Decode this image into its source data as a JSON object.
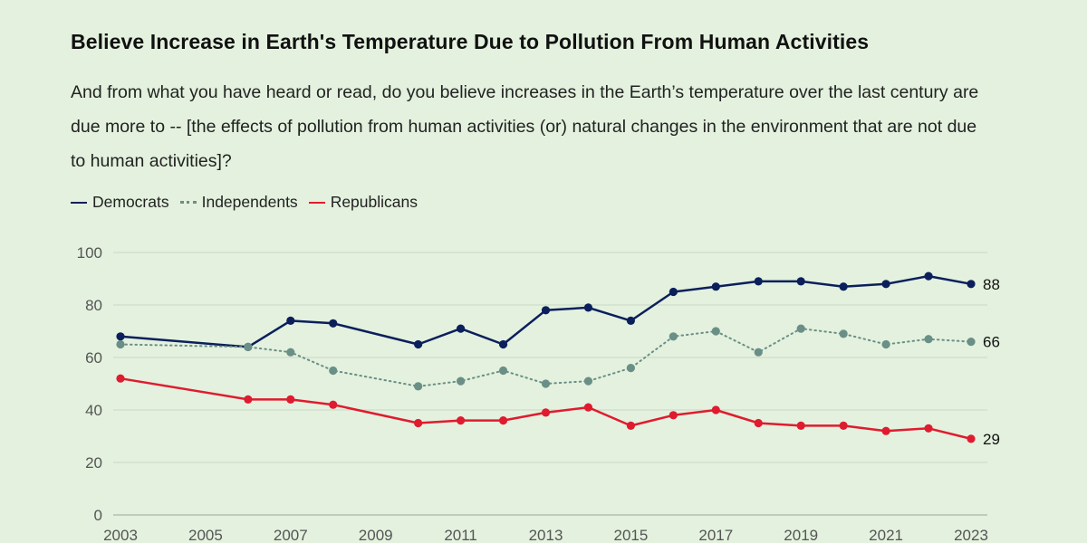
{
  "chart_data": {
    "type": "line",
    "title": "Believe Increase in Earth's Temperature Due to Pollution From Human Activities",
    "subtitle": "And from what you have heard or read, do you believe increases in the Earth’s temperature over the last century are due more to -- [the effects of pollution from human activities (or) natural changes in the environment that are not due to human activities]?",
    "xlabel": "",
    "ylabel": "",
    "ylim": [
      0,
      100
    ],
    "yticks": [
      0,
      20,
      40,
      60,
      80,
      100
    ],
    "xlim": [
      2003,
      2023
    ],
    "xticks": [
      2003,
      2005,
      2007,
      2009,
      2011,
      2013,
      2015,
      2017,
      2019,
      2021,
      2023
    ],
    "grid": true,
    "legend_position": "top-left",
    "series": [
      {
        "name": "Democrats",
        "color": "#0b1f5c",
        "style": "solid",
        "x": [
          2003,
          2006,
          2007,
          2008,
          2010,
          2011,
          2012,
          2013,
          2014,
          2015,
          2016,
          2017,
          2018,
          2019,
          2020,
          2021,
          2022,
          2023
        ],
        "values": [
          68,
          64,
          74,
          73,
          65,
          71,
          65,
          78,
          79,
          74,
          85,
          87,
          89,
          89,
          87,
          88,
          91,
          88
        ],
        "end_label": "88"
      },
      {
        "name": "Independents",
        "color": "#6a8f86",
        "style": "dotted",
        "x": [
          2003,
          2006,
          2007,
          2008,
          2010,
          2011,
          2012,
          2013,
          2014,
          2015,
          2016,
          2017,
          2018,
          2019,
          2020,
          2021,
          2022,
          2023
        ],
        "values": [
          65,
          64,
          62,
          55,
          49,
          51,
          55,
          50,
          51,
          56,
          68,
          70,
          62,
          71,
          69,
          65,
          67,
          66
        ],
        "end_label": "66"
      },
      {
        "name": "Republicans",
        "color": "#e01b2f",
        "style": "solid",
        "x": [
          2003,
          2006,
          2007,
          2008,
          2010,
          2011,
          2012,
          2013,
          2014,
          2015,
          2016,
          2017,
          2018,
          2019,
          2020,
          2021,
          2022,
          2023
        ],
        "values": [
          52,
          44,
          44,
          42,
          35,
          36,
          36,
          39,
          41,
          34,
          38,
          40,
          35,
          34,
          34,
          32,
          33,
          29
        ],
        "end_label": "29"
      }
    ]
  }
}
